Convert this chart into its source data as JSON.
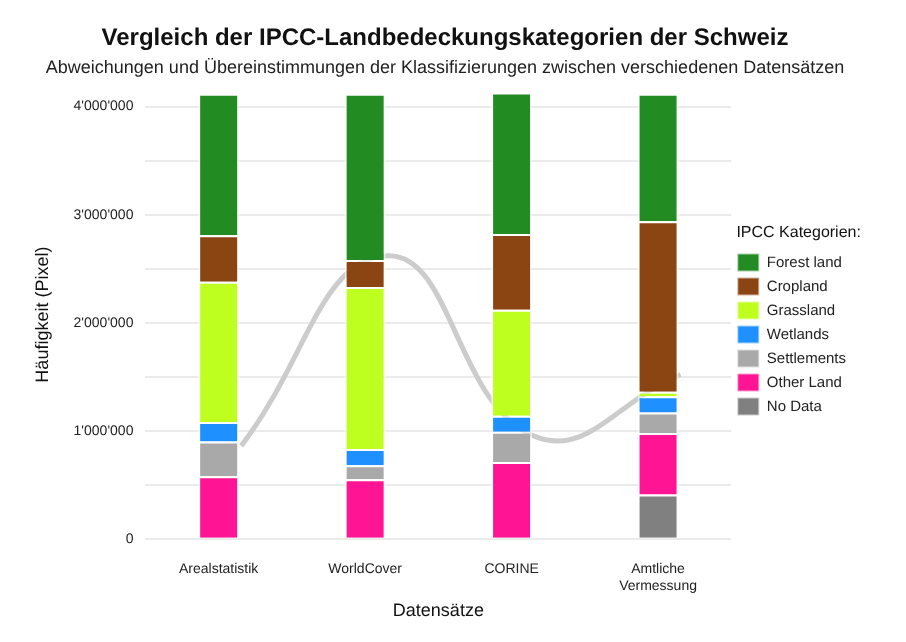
{
  "chart_data": {
    "type": "bar",
    "title": "Vergleich der IPCC-Landbedeckungskategorien der Schweiz",
    "subtitle": "Abweichungen und Übereinstimmungen der Klassifizierungen zwischen verschiedenen Datensätzen",
    "xlabel": "Datensätze",
    "ylabel": "Häufigkeit (Pixel)",
    "legend_title": "IPCC Kategorien:",
    "categories": [
      "Arealstatistik",
      "WorldCover",
      "CORINE",
      "Amtliche Vermessung"
    ],
    "stacked": true,
    "legend": "right",
    "grid": "y",
    "ylim": [
      0,
      4150000
    ],
    "yticks": [
      {
        "value": 0,
        "label": "0"
      },
      {
        "value": 500000,
        "label": null
      },
      {
        "value": 1000000,
        "label": "1'000'000"
      },
      {
        "value": 1500000,
        "label": null
      },
      {
        "value": 2000000,
        "label": "2'000'000"
      },
      {
        "value": 2500000,
        "label": null
      },
      {
        "value": 3000000,
        "label": "3'000'000"
      },
      {
        "value": 3500000,
        "label": null
      },
      {
        "value": 4000000,
        "label": "4'000'000"
      }
    ],
    "series": [
      {
        "name": "No Data",
        "color": "#808080",
        "values": [
          0,
          0,
          0,
          410000
        ]
      },
      {
        "name": "Other Land",
        "color": "#ff1493",
        "values": [
          580000,
          550000,
          710000,
          570000
        ]
      },
      {
        "name": "Settlements",
        "color": "#a9a9a9",
        "values": [
          320000,
          130000,
          280000,
          190000
        ]
      },
      {
        "name": "Wetlands",
        "color": "#1e90ff",
        "values": [
          180000,
          150000,
          150000,
          150000
        ]
      },
      {
        "name": "Grassland",
        "color": "#bfff1f",
        "values": [
          1300000,
          1500000,
          980000,
          40000
        ]
      },
      {
        "name": "Cropland",
        "color": "#8b4513",
        "values": [
          430000,
          250000,
          700000,
          1580000
        ]
      },
      {
        "name": "Forest land",
        "color": "#228b22",
        "values": [
          1310000,
          1540000,
          1310000,
          1180000
        ]
      },
      {
        "type": "line",
        "color": "#cccccc",
        "values": [
          860000,
          2620000,
          950000,
          1520000
        ]
      }
    ]
  }
}
